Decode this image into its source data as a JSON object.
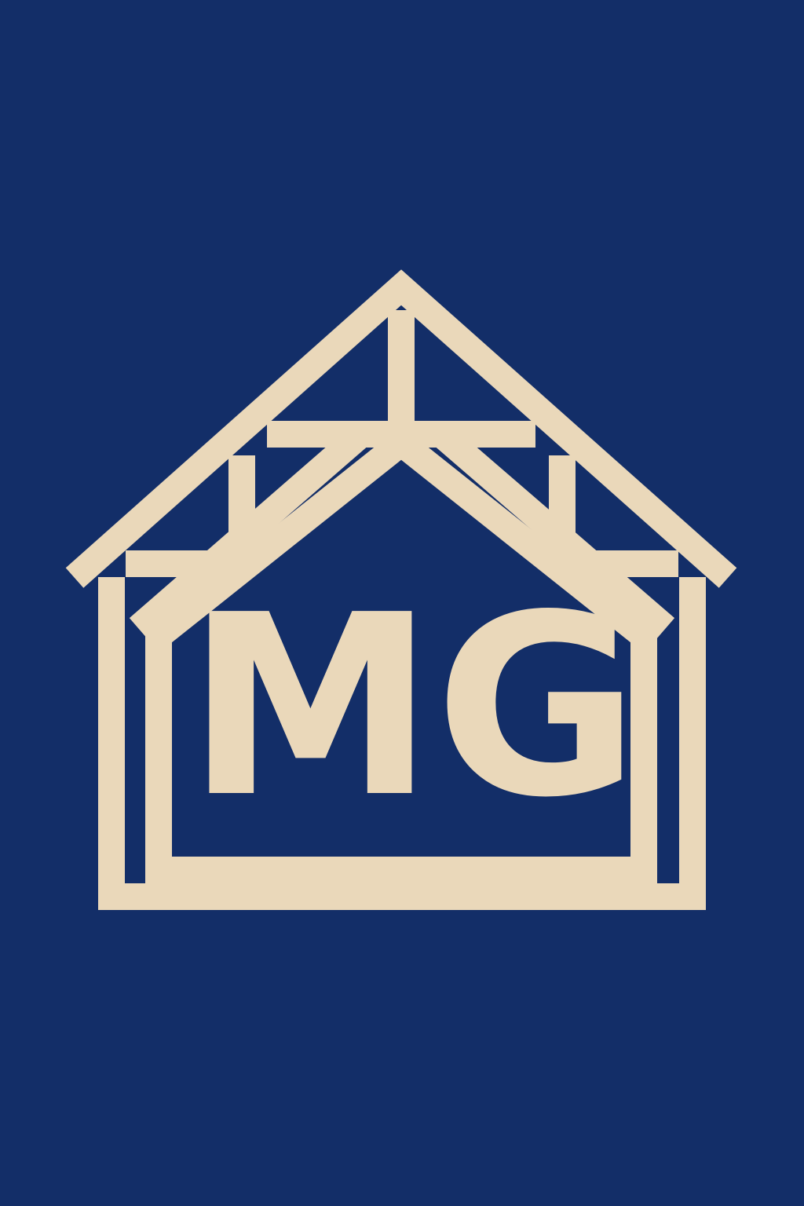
{
  "logo": {
    "monogram": "MG",
    "icon": "house-frame-icon",
    "colors": {
      "background": "#132e68",
      "foreground": "#ead8ba"
    }
  }
}
